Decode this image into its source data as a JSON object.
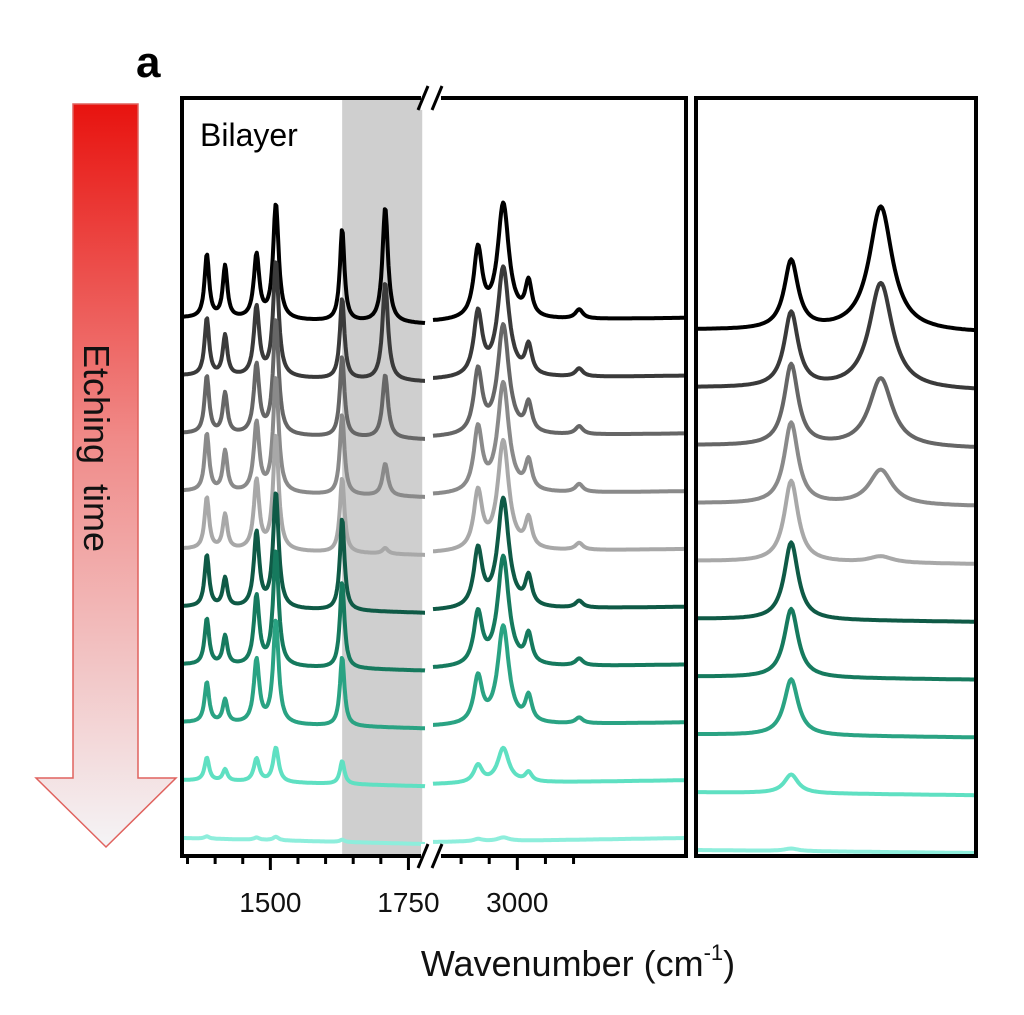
{
  "panel_label": "a",
  "arrow": {
    "label": "Etching  time",
    "gradient_top": "#e8130f",
    "gradient_bottom": "#f4f4f6",
    "border": "#e0625e"
  },
  "colors": {
    "highlight_band": "#cfcfcf",
    "frame": "#000000"
  },
  "chart_data": {
    "type": "line",
    "title": "",
    "annotation": "Bilayer",
    "xlabel": "Wavenumber (cm",
    "xlabel_sup": "-1",
    "xlabel_close": ")",
    "x_axis_breaks": [
      "between 1780 and 2850",
      "between panels (right panel unlabeled)"
    ],
    "segments": [
      {
        "name": "left",
        "xlim": [
          1340,
          1780
        ],
        "ticks": [
          1350,
          1400,
          1450,
          1500,
          1550,
          1600,
          1650,
          1700,
          1750
        ],
        "tick_labels": [
          {
            "x": 1500,
            "label": "1500"
          },
          {
            "x": 1750,
            "label": "1750"
          }
        ]
      },
      {
        "name": "middle",
        "xlim": [
          2850,
          3300
        ],
        "ticks": [
          2900,
          2950,
          3000,
          3050,
          3100
        ],
        "tick_labels": [
          {
            "x": 3000,
            "label": "3000"
          }
        ]
      },
      {
        "name": "right",
        "xlim": [
          0,
          1
        ],
        "ticks": [],
        "tick_labels": []
      }
    ],
    "highlighted_range": [
      1630,
      1775
    ],
    "peaks": {
      "left": [
        1385,
        1418,
        1475,
        1510,
        1630,
        1708
      ],
      "middle": [
        2930,
        2975,
        3020,
        3110
      ],
      "right": [
        0.34,
        0.66
      ]
    },
    "series": [
      {
        "color": "#000000",
        "left_amp": [
          0.55,
          0.45,
          0.55,
          1.0,
          0.8,
          1.0
        ],
        "middle_amp": [
          0.6,
          1.0,
          0.3,
          0.08
        ],
        "right_amp": [
          0.55,
          1.0
        ]
      },
      {
        "color": "#3a3a3a",
        "left_amp": [
          0.5,
          0.35,
          0.6,
          1.0,
          0.7,
          0.85
        ],
        "middle_amp": [
          0.55,
          0.95,
          0.25,
          0.07
        ],
        "right_amp": [
          0.6,
          0.85
        ]
      },
      {
        "color": "#666666",
        "left_amp": [
          0.5,
          0.35,
          0.6,
          1.0,
          0.7,
          0.55
        ],
        "middle_amp": [
          0.55,
          0.95,
          0.25,
          0.07
        ],
        "right_amp": [
          0.65,
          0.55
        ]
      },
      {
        "color": "#8a8a8a",
        "left_amp": [
          0.5,
          0.35,
          0.6,
          1.0,
          0.7,
          0.28
        ],
        "middle_amp": [
          0.55,
          0.95,
          0.25,
          0.07
        ],
        "right_amp": [
          0.65,
          0.28
        ]
      },
      {
        "color": "#a8a8a8",
        "left_amp": [
          0.45,
          0.3,
          0.6,
          1.0,
          0.65,
          0.05
        ],
        "middle_amp": [
          0.5,
          0.95,
          0.25,
          0.06
        ],
        "right_amp": [
          0.65,
          0.05
        ]
      },
      {
        "color": "#0f5a46",
        "left_amp": [
          0.45,
          0.25,
          0.65,
          1.0,
          0.8,
          0.0
        ],
        "middle_amp": [
          0.5,
          0.95,
          0.25,
          0.06
        ],
        "right_amp": [
          0.62,
          0.0
        ]
      },
      {
        "color": "#167a5e",
        "left_amp": [
          0.4,
          0.25,
          0.6,
          1.0,
          0.75,
          0.0
        ],
        "middle_amp": [
          0.45,
          0.95,
          0.25,
          0.06
        ],
        "right_amp": [
          0.55,
          0.0
        ]
      },
      {
        "color": "#2aa383",
        "left_amp": [
          0.35,
          0.2,
          0.55,
          0.9,
          0.6,
          0.0
        ],
        "middle_amp": [
          0.4,
          0.85,
          0.22,
          0.05
        ],
        "right_amp": [
          0.45,
          0.0
        ]
      },
      {
        "color": "#5fe0c2",
        "left_amp": [
          0.2,
          0.1,
          0.2,
          0.3,
          0.2,
          0.0
        ],
        "middle_amp": [
          0.15,
          0.3,
          0.08,
          0.0
        ],
        "right_amp": [
          0.15,
          0.0
        ]
      },
      {
        "color": "#8eeedc",
        "left_amp": [
          0.02,
          0.0,
          0.02,
          0.03,
          0.02,
          0.0
        ],
        "middle_amp": [
          0.02,
          0.03,
          0.0,
          0.0
        ],
        "right_amp": [
          0.02,
          0.0
        ]
      }
    ]
  }
}
